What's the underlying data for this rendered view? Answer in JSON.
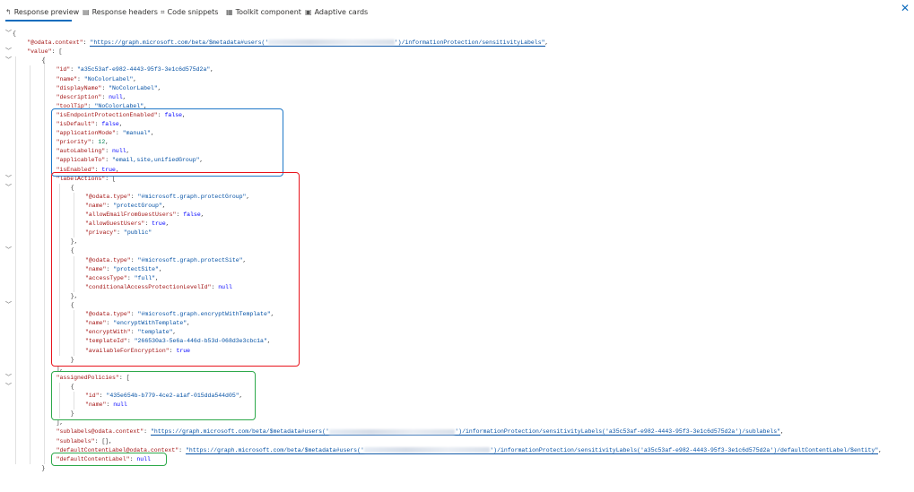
{
  "tabs": [
    {
      "label": "Response preview",
      "icon": "undo-arrow-icon",
      "glyph": "↰",
      "active": true
    },
    {
      "label": "Response headers",
      "icon": "document-icon",
      "glyph": "▤"
    },
    {
      "label": "Code snippets",
      "icon": "code-icon",
      "glyph": "⌗"
    },
    {
      "label": "Toolkit component",
      "icon": "toolkit-icon",
      "glyph": "▦"
    },
    {
      "label": "Adaptive cards",
      "icon": "card-icon",
      "glyph": "▣"
    }
  ],
  "close_glyph": "✕",
  "colors": {
    "key": "#a31515",
    "string": "#0451a5",
    "number": "#098658",
    "literal": "#0000ff",
    "blue_box": "#1f78c8",
    "red_box": "#e8141c",
    "green_box": "#2da94a",
    "accent": "#0f6cbd"
  },
  "response_lines": [
    {
      "d": 0,
      "p": "{",
      "fold": true
    },
    {
      "d": 1,
      "k": "@odata.context",
      "t": "link",
      "v": "https://graph.microsoft.com/beta/$metadata#users('",
      "r": 36,
      "v2": "')/informationProtection/sensitivityLabels",
      "p": ","
    },
    {
      "d": 1,
      "k": "value",
      "p": "[",
      "fold": true
    },
    {
      "d": 2,
      "p": "{",
      "fold": true
    },
    {
      "d": 3,
      "k": "id",
      "t": "s",
      "v": "a35c53af-e982-4443-95f3-3e1c6d575d2a",
      "p": ","
    },
    {
      "d": 3,
      "k": "name",
      "t": "s",
      "v": "NoColorLabel",
      "p": ","
    },
    {
      "d": 3,
      "k": "displayName",
      "t": "s",
      "v": "NoColorLabel",
      "p": ","
    },
    {
      "d": 3,
      "k": "description",
      "t": "l",
      "v": "null",
      "p": ","
    },
    {
      "d": 3,
      "k": "toolTip",
      "t": "s",
      "v": "NoColorLabel",
      "p": ","
    },
    {
      "d": 3,
      "k": "isEndpointProtectionEnabled",
      "t": "l",
      "v": "false",
      "p": ","
    },
    {
      "d": 3,
      "k": "isDefault",
      "t": "l",
      "v": "false",
      "p": ","
    },
    {
      "d": 3,
      "k": "applicationMode",
      "t": "s",
      "v": "manual",
      "p": ","
    },
    {
      "d": 3,
      "k": "priority",
      "t": "n",
      "v": "12",
      "p": ","
    },
    {
      "d": 3,
      "k": "autoLabeling",
      "t": "l",
      "v": "null",
      "p": ","
    },
    {
      "d": 3,
      "k": "applicableTo",
      "t": "s",
      "v": "email,site,unifiedGroup",
      "p": ","
    },
    {
      "d": 3,
      "k": "isEnabled",
      "t": "l",
      "v": "true",
      "p": ","
    },
    {
      "d": 3,
      "k": "labelActions",
      "p": "[",
      "fold": true
    },
    {
      "d": 4,
      "p": "{",
      "fold": true
    },
    {
      "d": 5,
      "k": "@odata.type",
      "t": "s",
      "v": "#microsoft.graph.protectGroup",
      "p": ","
    },
    {
      "d": 5,
      "k": "name",
      "t": "s",
      "v": "protectGroup",
      "p": ","
    },
    {
      "d": 5,
      "k": "allowEmailFromGuestUsers",
      "t": "l",
      "v": "false",
      "p": ","
    },
    {
      "d": 5,
      "k": "allowGuestUsers",
      "t": "l",
      "v": "true",
      "p": ","
    },
    {
      "d": 5,
      "k": "privacy",
      "t": "s",
      "v": "public",
      "p": ""
    },
    {
      "d": 4,
      "p": "},"
    },
    {
      "d": 4,
      "p": "{",
      "fold": true
    },
    {
      "d": 5,
      "k": "@odata.type",
      "t": "s",
      "v": "#microsoft.graph.protectSite",
      "p": ","
    },
    {
      "d": 5,
      "k": "name",
      "t": "s",
      "v": "protectSite",
      "p": ","
    },
    {
      "d": 5,
      "k": "accessType",
      "t": "s",
      "v": "full",
      "p": ","
    },
    {
      "d": 5,
      "k": "conditionalAccessProtectionLevelId",
      "t": "l",
      "v": "null",
      "p": ""
    },
    {
      "d": 4,
      "p": "},"
    },
    {
      "d": 4,
      "p": "{",
      "fold": true
    },
    {
      "d": 5,
      "k": "@odata.type",
      "t": "s",
      "v": "#microsoft.graph.encryptWithTemplate",
      "p": ","
    },
    {
      "d": 5,
      "k": "name",
      "t": "s",
      "v": "encryptWithTemplate",
      "p": ","
    },
    {
      "d": 5,
      "k": "encryptWith",
      "t": "s",
      "v": "template",
      "p": ","
    },
    {
      "d": 5,
      "k": "templateId",
      "t": "s",
      "v": "266530a3-5e6a-446d-b53d-068d3e3cbc1a",
      "p": ","
    },
    {
      "d": 5,
      "k": "availableForEncryption",
      "t": "l",
      "v": "true",
      "p": ""
    },
    {
      "d": 4,
      "p": "}"
    },
    {
      "d": 3,
      "p": "],"
    },
    {
      "d": 3,
      "k": "assignedPolicies",
      "p": "[",
      "fold": true
    },
    {
      "d": 4,
      "p": "{",
      "fold": true
    },
    {
      "d": 5,
      "k": "id",
      "t": "s",
      "v": "435e654b-b779-4ce2-a1af-015dda544d05",
      "p": ","
    },
    {
      "d": 5,
      "k": "name",
      "t": "l",
      "v": "null",
      "p": ""
    },
    {
      "d": 4,
      "p": "}"
    },
    {
      "d": 3,
      "p": "],"
    },
    {
      "d": 3,
      "k": "sublabels@odata.context",
      "t": "link",
      "v": "https://graph.microsoft.com/beta/$metadata#users('",
      "r": 36,
      "v2": "')/informationProtection/sensitivityLabels('a35c53af-e982-4443-95f3-3e1c6d575d2a')/sublabels",
      "p": ","
    },
    {
      "d": 3,
      "k": "sublabels",
      "t": "raw",
      "v": "[]",
      "p": ","
    },
    {
      "d": 3,
      "k": "defaultContentLabel@odata.context",
      "t": "link",
      "v": "https://graph.microsoft.com/beta/$metadata#users('",
      "r": 36,
      "v2": "')/informationProtection/sensitivityLabels('a35c53af-e982-4443-95f3-3e1c6d575d2a')/defaultContentLabel/$entity",
      "p": ","
    },
    {
      "d": 3,
      "k": "defaultContentLabel",
      "t": "l",
      "v": "null",
      "p": ""
    },
    {
      "d": 2,
      "p": "}"
    }
  ],
  "highlight_boxes": [
    {
      "name": "label-settings-highlight",
      "color": "blue_box",
      "from": 9,
      "to": 15
    },
    {
      "name": "label-actions-highlight",
      "color": "red_box",
      "from": 16,
      "to": 36
    },
    {
      "name": "assigned-policies-highlight",
      "color": "green_box",
      "from": 38,
      "to": 42
    },
    {
      "name": "default-content-label-highlight",
      "color": "green_box",
      "from": 47,
      "to": 47
    }
  ]
}
